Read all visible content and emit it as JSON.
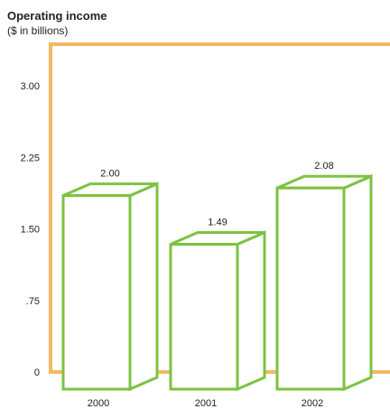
{
  "chart_data": {
    "type": "bar",
    "title": "Operating income",
    "subtitle": "($ in billions)",
    "categories": [
      "2000",
      "2001",
      "2002"
    ],
    "values": [
      2.0,
      1.49,
      2.08
    ],
    "value_labels": [
      "2.00",
      "1.49",
      "2.08"
    ],
    "y_ticks": [
      0,
      0.75,
      1.5,
      2.25,
      3.0
    ],
    "y_tick_labels": [
      "0",
      ".75",
      "1.50",
      "2.25",
      "3.00"
    ],
    "ylim": [
      0,
      3.3
    ],
    "grid": false,
    "legend": "none",
    "style": "3d-outlined-bars"
  },
  "colors": {
    "frame": "#f5b862",
    "bar_outline": "#7dc242",
    "bar_fill": "#ffffff",
    "text": "#222222"
  }
}
